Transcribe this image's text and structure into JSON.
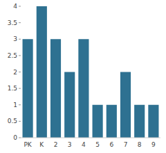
{
  "chart_data": {
    "type": "bar",
    "categories": [
      "PK",
      "K",
      "2",
      "3",
      "4",
      "5",
      "6",
      "7",
      "8",
      "9"
    ],
    "values": [
      3,
      4,
      3,
      2,
      3,
      1,
      1,
      2,
      1,
      1
    ],
    "color": "#2e7191",
    "ylim": [
      0,
      4
    ],
    "yticks": [
      0,
      0.5,
      1,
      1.5,
      2,
      2.5,
      3,
      3.5,
      4
    ],
    "grid": false
  }
}
